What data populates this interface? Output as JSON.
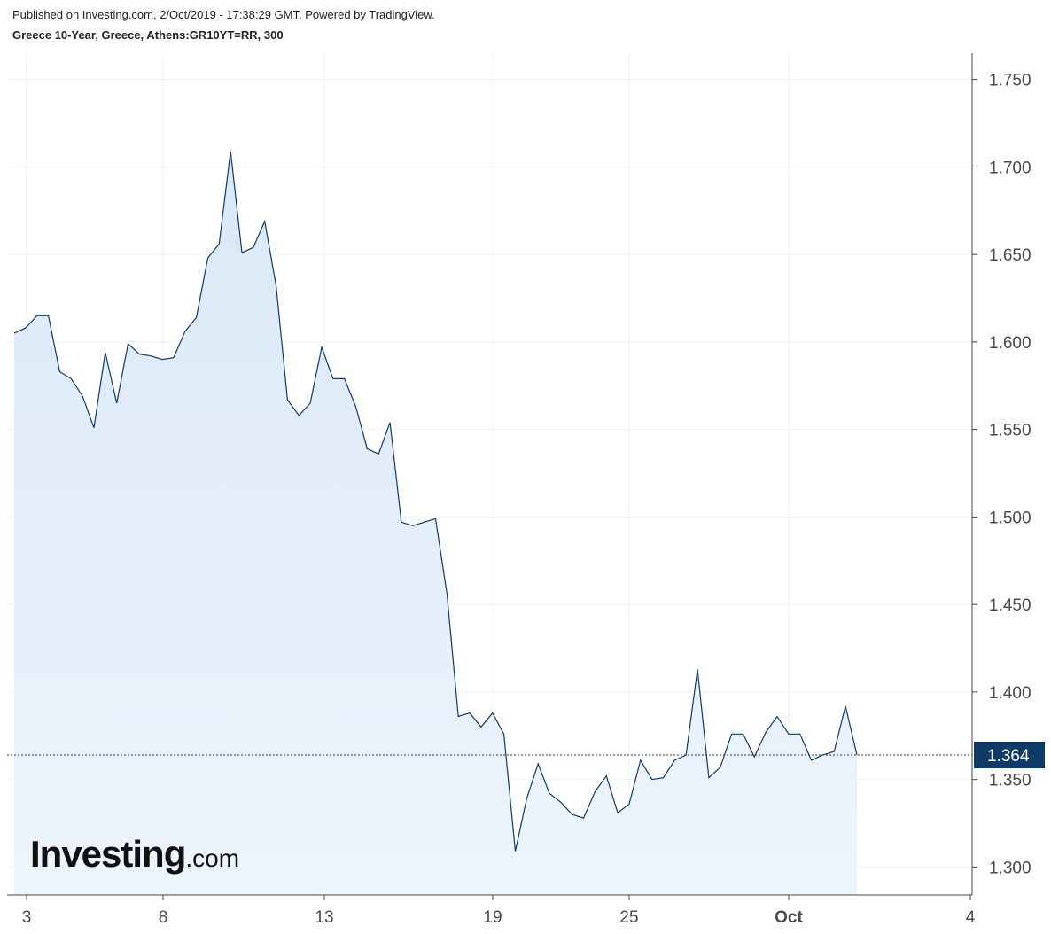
{
  "header": {
    "published": "Published on Investing.com, 2/Oct/2019 - 17:38:29 GMT, Powered by TradingView.",
    "subtitle": "Greece 10-Year, Greece, Athens:GR10YT=RR, 300"
  },
  "logo": {
    "main": "Investing",
    "suffix": ".com"
  },
  "colors": {
    "line": "#0d3a66",
    "area_top": "#dae8f6",
    "area_bottom": "#edf4fc",
    "price_label_bg": "#0d3a66",
    "grid": "#eef2f6",
    "axis": "#444444"
  },
  "chart_data": {
    "type": "area",
    "series": [
      {
        "values": [
          1.605,
          1.608,
          1.615,
          1.615,
          1.583,
          1.579,
          1.569,
          1.551,
          1.594,
          1.565,
          1.599,
          1.593,
          1.592,
          1.59,
          1.591,
          1.606,
          1.614,
          1.648,
          1.656,
          1.709,
          1.651,
          1.654,
          1.669,
          1.632,
          1.567,
          1.558,
          1.565,
          1.597,
          1.579,
          1.579,
          1.563,
          1.539,
          1.536,
          1.554,
          1.497,
          1.495,
          1.497,
          1.499,
          1.456,
          1.386,
          1.388,
          1.38,
          1.388,
          1.376,
          1.309,
          1.339,
          1.359,
          1.342,
          1.337,
          1.33,
          1.328,
          1.343,
          1.352,
          1.331,
          1.336,
          1.361,
          1.35,
          1.351,
          1.361,
          1.364,
          1.413,
          1.351,
          1.357,
          1.376,
          1.376,
          1.363,
          1.377,
          1.386,
          1.376,
          1.376,
          1.361,
          1.364,
          1.366,
          1.392,
          1.364
        ]
      }
    ],
    "y_ticks": [
      "1.750",
      "1.700",
      "1.650",
      "1.600",
      "1.550",
      "1.500",
      "1.450",
      "1.400",
      "1.350",
      "1.300"
    ],
    "ylim": [
      1.284,
      1.765
    ],
    "x_ticks": [
      {
        "label": "3",
        "bold": false
      },
      {
        "label": "8",
        "bold": false
      },
      {
        "label": "13",
        "bold": false
      },
      {
        "label": "19",
        "bold": false
      },
      {
        "label": "25",
        "bold": false
      },
      {
        "label": "Oct",
        "bold": true
      },
      {
        "label": "4",
        "bold": false
      }
    ],
    "last_value": 1.364,
    "last_value_label": "1.364",
    "grid": true
  }
}
